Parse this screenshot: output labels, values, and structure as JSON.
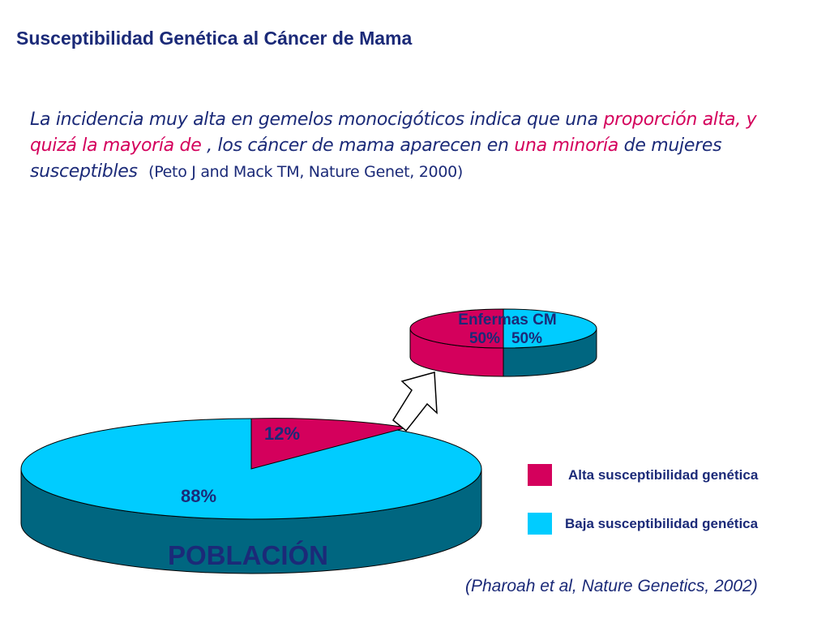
{
  "title": "Susceptibilidad Genética al Cáncer de Mama",
  "intro": {
    "p1": "La incidencia muy alta en gemelos monocigóticos indica que una ",
    "h1": "proporción alta, y quizá la mayoría de",
    "p2": " , los cáncer de mama aparecen en ",
    "h2": "una minoría",
    "p3": " de mujeres susceptibles",
    "cite": "(Peto J and Mack TM, Nature Genet, 2000)"
  },
  "colors": {
    "alta": "#d4005c",
    "baja": "#00ccff",
    "side": "#006680",
    "text": "#1b2a78"
  },
  "chart_data": [
    {
      "type": "pie",
      "name": "POBLACIÓN",
      "slices": [
        {
          "label": "12%",
          "value": 12,
          "category": "Alta susceptibilidad genética"
        },
        {
          "label": "88%",
          "value": 88,
          "category": "Baja susceptibilidad genética"
        }
      ]
    },
    {
      "type": "pie",
      "name": "Enfermas CM",
      "slices": [
        {
          "label": "50%",
          "value": 50,
          "category": "Alta susceptibilidad genética"
        },
        {
          "label": "50%",
          "value": 50,
          "category": "Baja susceptibilidad genética"
        }
      ]
    }
  ],
  "legend": [
    {
      "label": "Alta susceptibilidad genética",
      "color": "#d4005c"
    },
    {
      "label": "Baja susceptibilidad genética",
      "color": "#00ccff"
    }
  ],
  "source": "(Pharoah et al, Nature Genetics, 2002)"
}
